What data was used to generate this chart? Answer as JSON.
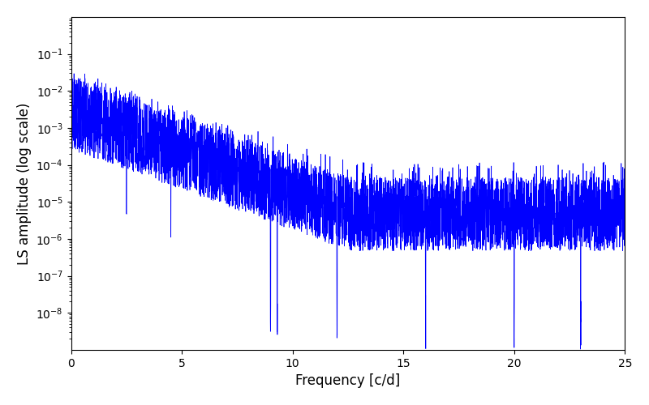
{
  "title": "",
  "xlabel": "Frequency [c/d]",
  "ylabel": "LS amplitude (log scale)",
  "xlim": [
    0,
    25
  ],
  "ylim": [
    1e-09,
    1.0
  ],
  "line_color": "blue",
  "line_width": 0.5,
  "figsize": [
    8.0,
    5.0
  ],
  "dpi": 100,
  "background_color": "#ffffff",
  "seed": 42,
  "n_points": 5000,
  "freq_max": 25.0,
  "yticks": [
    1e-08,
    1e-07,
    1e-06,
    1e-05,
    0.0001,
    0.001,
    0.01,
    0.1
  ]
}
